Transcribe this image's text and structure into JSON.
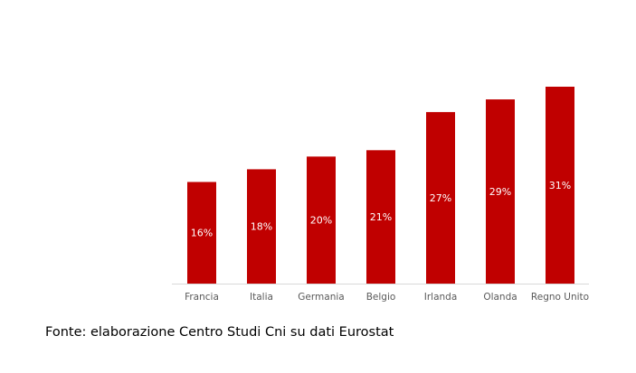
{
  "chart_data": {
    "type": "bar",
    "categories": [
      "Francia",
      "Italia",
      "Germania",
      "Belgio",
      "Irlanda",
      "Olanda",
      "Regno Unito"
    ],
    "values": [
      16,
      18,
      20,
      21,
      27,
      29,
      31
    ],
    "value_labels": [
      "16%",
      "18%",
      "20%",
      "21%",
      "27%",
      "29%",
      "31%"
    ],
    "ylim": [
      0,
      31
    ],
    "grid": false,
    "legend": "none",
    "bar_color": "#c00000",
    "axis_color": "#d9d9d9",
    "label_color": "#595959"
  },
  "source_note": "Fonte: elaborazione Centro Studi Cni su dati Eurostat"
}
